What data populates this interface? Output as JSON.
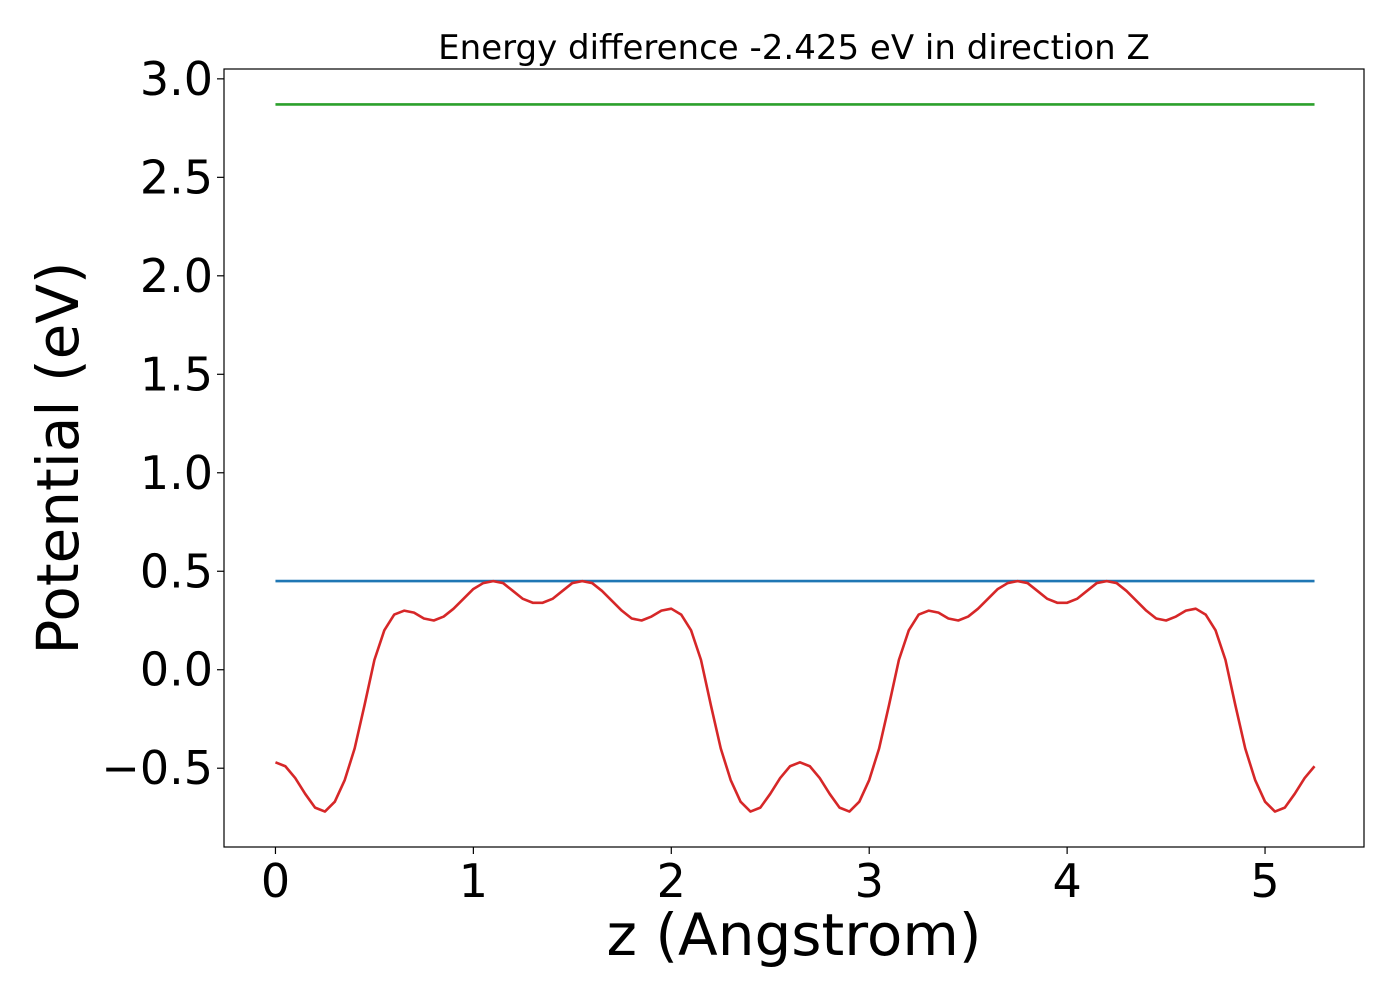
{
  "chart_data": {
    "type": "line",
    "title": "Energy difference -2.425 eV in direction Z",
    "xlabel": "z (Angstrom)",
    "ylabel": "Potential (eV)",
    "xlim": [
      -0.26,
      5.5
    ],
    "ylim": [
      -0.9,
      3.05
    ],
    "xticks": [
      0,
      1,
      2,
      3,
      4,
      5
    ],
    "xtick_labels": [
      "0",
      "1",
      "2",
      "3",
      "4",
      "5"
    ],
    "yticks": [
      -0.5,
      0.0,
      0.5,
      1.0,
      1.5,
      2.0,
      2.5,
      3.0
    ],
    "ytick_labels": [
      "−0.5",
      "0.0",
      "0.5",
      "1.0",
      "1.5",
      "2.0",
      "2.5",
      "3.0"
    ],
    "grid": false,
    "series": [
      {
        "color": "#2ca02c",
        "x": [
          0,
          5.25
        ],
        "y": [
          2.87,
          2.87
        ]
      },
      {
        "color": "#1f77b4",
        "x": [
          0,
          5.25
        ],
        "y": [
          0.45,
          0.45
        ]
      },
      {
        "color": "#d62728",
        "x": [
          0.0,
          0.05,
          0.1,
          0.15,
          0.2,
          0.25,
          0.3,
          0.35,
          0.4,
          0.45,
          0.5,
          0.55,
          0.6,
          0.65,
          0.7,
          0.75,
          0.8,
          0.85,
          0.9,
          0.95,
          1.0,
          1.05,
          1.1,
          1.15,
          1.2,
          1.25,
          1.3,
          1.35,
          1.4,
          1.45,
          1.5,
          1.55,
          1.6,
          1.65,
          1.7,
          1.75,
          1.8,
          1.85,
          1.9,
          1.95,
          2.0,
          2.05,
          2.1,
          2.15,
          2.2,
          2.25,
          2.3,
          2.35,
          2.4,
          2.45,
          2.5,
          2.55,
          2.6,
          2.65,
          2.7,
          2.75,
          2.8,
          2.85,
          2.9,
          2.95,
          3.0,
          3.05,
          3.1,
          3.15,
          3.2,
          3.25,
          3.3,
          3.35,
          3.4,
          3.45,
          3.5,
          3.55,
          3.6,
          3.65,
          3.7,
          3.75,
          3.8,
          3.85,
          3.9,
          3.95,
          4.0,
          4.05,
          4.1,
          4.15,
          4.2,
          4.25,
          4.3,
          4.35,
          4.4,
          4.45,
          4.5,
          4.55,
          4.6,
          4.65,
          4.7,
          4.75,
          4.8,
          4.85,
          4.9,
          4.95,
          5.0,
          5.05,
          5.1,
          5.15,
          5.2,
          5.25
        ],
        "y": [
          -0.47,
          -0.49,
          -0.55,
          -0.63,
          -0.7,
          -0.72,
          -0.67,
          -0.56,
          -0.4,
          -0.18,
          0.05,
          0.2,
          0.28,
          0.3,
          0.29,
          0.26,
          0.25,
          0.27,
          0.31,
          0.36,
          0.41,
          0.44,
          0.45,
          0.44,
          0.4,
          0.36,
          0.34,
          0.34,
          0.36,
          0.4,
          0.44,
          0.45,
          0.44,
          0.4,
          0.35,
          0.3,
          0.26,
          0.25,
          0.27,
          0.3,
          0.31,
          0.28,
          0.2,
          0.05,
          -0.18,
          -0.4,
          -0.56,
          -0.67,
          -0.72,
          -0.7,
          -0.63,
          -0.55,
          -0.49,
          -0.47,
          -0.49,
          -0.55,
          -0.63,
          -0.7,
          -0.72,
          -0.67,
          -0.56,
          -0.4,
          -0.18,
          0.05,
          0.2,
          0.28,
          0.3,
          0.29,
          0.26,
          0.25,
          0.27,
          0.31,
          0.36,
          0.41,
          0.44,
          0.45,
          0.44,
          0.4,
          0.36,
          0.34,
          0.34,
          0.36,
          0.4,
          0.44,
          0.45,
          0.44,
          0.4,
          0.35,
          0.3,
          0.26,
          0.25,
          0.27,
          0.3,
          0.31,
          0.28,
          0.2,
          0.05,
          -0.18,
          -0.4,
          -0.56,
          -0.67,
          -0.72,
          -0.7,
          -0.63,
          -0.55,
          -0.49
        ]
      }
    ]
  }
}
